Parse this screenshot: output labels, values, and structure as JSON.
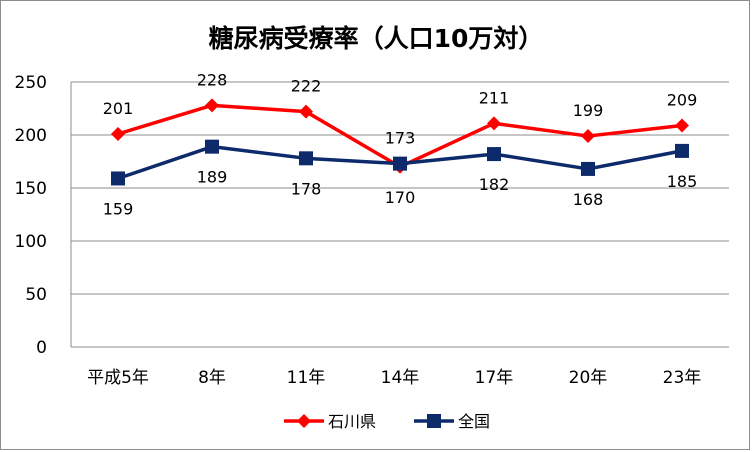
{
  "chart_data": {
    "type": "line",
    "title": "糖尿病受療率（人口10万対）",
    "categories": [
      "平成5年",
      "8年",
      "11年",
      "14年",
      "17年",
      "20年",
      "23年"
    ],
    "series": [
      {
        "name": "石川県",
        "values": [
          201,
          228,
          222,
          170,
          211,
          199,
          209
        ],
        "color": "#ff0000",
        "marker": "diamond"
      },
      {
        "name": "全国",
        "values": [
          159,
          189,
          178,
          173,
          182,
          168,
          185
        ],
        "color": "#0d2a6b",
        "marker": "square"
      }
    ],
    "yticks": [
      0,
      50,
      100,
      150,
      200,
      250
    ],
    "ylim": [
      0,
      250
    ],
    "grid": true,
    "legend": "bottom"
  }
}
